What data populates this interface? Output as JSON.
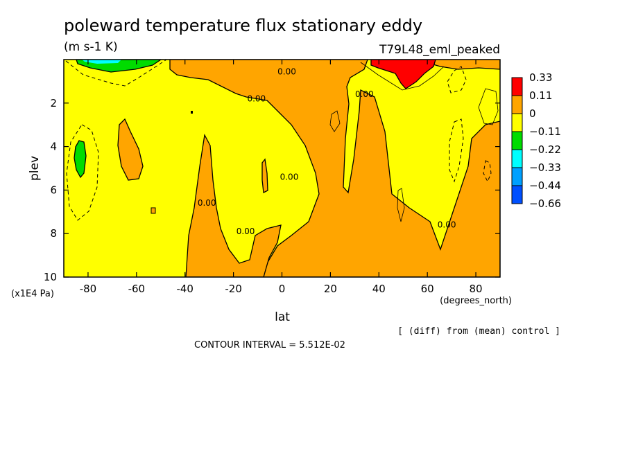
{
  "title": "poleward temperature flux stationary eddy",
  "units": "(m s-1 K)",
  "experiment": "T79L48_eml_peaked",
  "footnote": "[ (diff) from (mean) control ]",
  "contour_interval": "CONTOUR INTERVAL = 5.512E-02",
  "chart_data": {
    "type": "heatmap",
    "title": "poleward temperature flux stationary eddy",
    "xlabel": "lat",
    "xunits": "(degrees_north)",
    "ylabel": "plev",
    "yunits": "(x1E4 Pa)",
    "xlim": [
      -90,
      90
    ],
    "ylim": [
      10,
      0
    ],
    "x_ticks": [
      {
        "value": -80,
        "label": "-80"
      },
      {
        "value": -60,
        "label": "-60"
      },
      {
        "value": -40,
        "label": "-40"
      },
      {
        "value": -20,
        "label": "-20"
      },
      {
        "value": 0,
        "label": "0"
      },
      {
        "value": 20,
        "label": "20"
      },
      {
        "value": 40,
        "label": "40"
      },
      {
        "value": 60,
        "label": "60"
      },
      {
        "value": 80,
        "label": "80"
      }
    ],
    "y_ticks": [
      {
        "value": 2,
        "label": "2"
      },
      {
        "value": 4,
        "label": "4"
      },
      {
        "value": 6,
        "label": "6"
      },
      {
        "value": 8,
        "label": "8"
      },
      {
        "value": 10,
        "label": "10"
      }
    ],
    "contour_labels": [
      {
        "text": "0.00",
        "lat": -10.5,
        "plev": 1.8
      },
      {
        "text": "0.00",
        "lat": 2,
        "plev": 0.55
      },
      {
        "text": "0.00",
        "lat": 34,
        "plev": 1.6
      },
      {
        "text": "0.00",
        "lat": -31,
        "plev": 6.6
      },
      {
        "text": "0.00",
        "lat": 3,
        "plev": 5.4
      },
      {
        "text": "0.00",
        "lat": -15,
        "plev": 7.9
      },
      {
        "text": "0.00",
        "lat": 68,
        "plev": 7.6
      }
    ],
    "legend": {
      "placement": "right",
      "colors": [
        "#ff0000",
        "#ffa500",
        "#ffff00",
        "#00dc00",
        "#00ffff",
        "#00a0ff",
        "#0050ff"
      ],
      "labels": [
        "0.33",
        "0.11",
        "0",
        "−0.11",
        "−0.22",
        "−0.33",
        "−0.44",
        "−0.66"
      ]
    }
  }
}
